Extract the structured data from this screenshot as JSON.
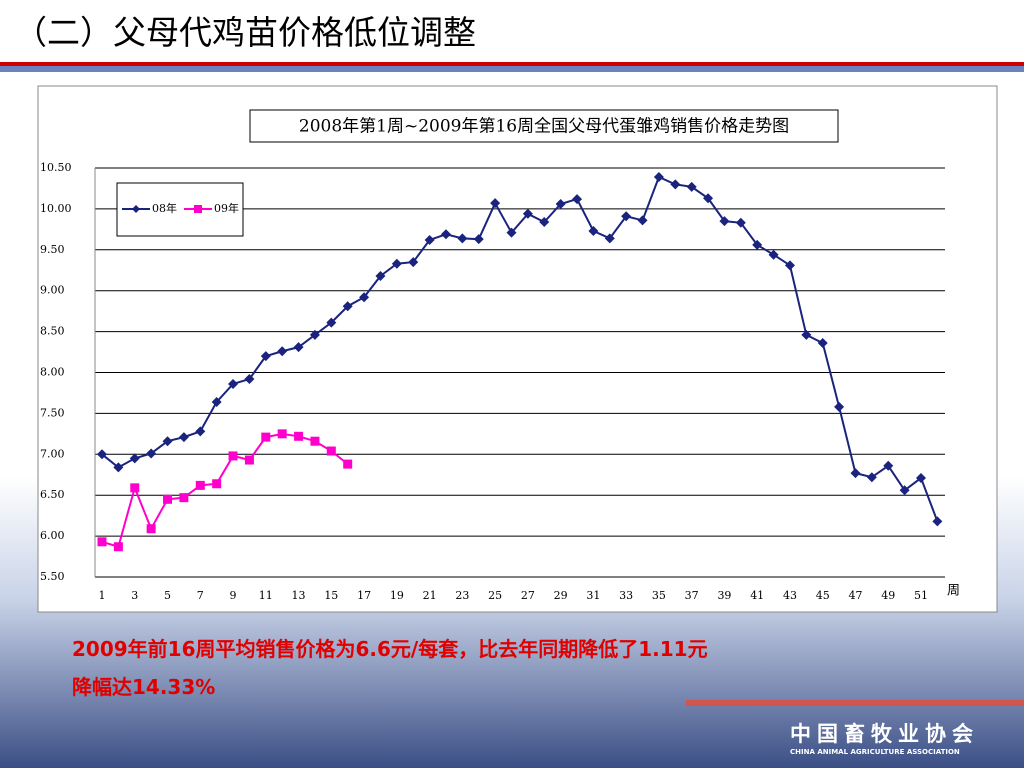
{
  "slide": {
    "title": "（二）父母代鸡苗价格低位调整",
    "note_lines": [
      "2009年前16周平均销售价格为6.6元/每套，比去年同期降低了1.11元",
      "降幅达14.33%"
    ],
    "logo_name": "中国畜牧业协会",
    "logo_subtitle": "CHINA ANIMAL AGRICULTURE ASSOCIATION"
  },
  "chart_data": {
    "type": "line",
    "title": "2008年第1周~2009年第16周全国父母代蛋雏鸡销售价格走势图",
    "x_label": "周",
    "categories": [
      1,
      null,
      3,
      null,
      5,
      null,
      7,
      null,
      9,
      null,
      11,
      null,
      13,
      null,
      15,
      null,
      17,
      null,
      19,
      null,
      21,
      null,
      23,
      null,
      25,
      null,
      27,
      null,
      29,
      null,
      31,
      null,
      33,
      null,
      35,
      null,
      37,
      null,
      39,
      null,
      41,
      null,
      43,
      null,
      45,
      null,
      47,
      null,
      49,
      null,
      51,
      null
    ],
    "series": [
      {
        "name": "08年",
        "color": "#1a237e",
        "marker": "diamond",
        "values": [
          7.0,
          6.84,
          6.95,
          7.01,
          7.16,
          7.21,
          7.28,
          7.64,
          7.86,
          7.92,
          8.2,
          8.26,
          8.31,
          8.46,
          8.61,
          8.81,
          8.92,
          9.18,
          9.33,
          9.35,
          9.62,
          9.69,
          9.64,
          9.63,
          10.07,
          9.71,
          9.94,
          9.84,
          10.06,
          10.12,
          9.73,
          9.64,
          9.91,
          9.86,
          10.39,
          10.3,
          10.27,
          10.13,
          9.85,
          9.83,
          9.56,
          9.44,
          9.31,
          8.46,
          8.36,
          7.58,
          6.77,
          6.72,
          6.86,
          6.56,
          6.71,
          6.18
        ]
      },
      {
        "name": "09年",
        "color": "#ff00cc",
        "marker": "square",
        "values": [
          5.93,
          5.87,
          6.59,
          6.09,
          6.45,
          6.47,
          6.62,
          6.64,
          6.98,
          6.93,
          7.21,
          7.25,
          7.22,
          7.16,
          7.04,
          6.88,
          null,
          null,
          null,
          null,
          null,
          null,
          null,
          null,
          null,
          null,
          null,
          null,
          null,
          null,
          null,
          null,
          null,
          null,
          null,
          null,
          null,
          null,
          null,
          null,
          null,
          null,
          null,
          null,
          null,
          null,
          null,
          null,
          null,
          null,
          null,
          null
        ]
      }
    ],
    "ylim": [
      5.5,
      10.5
    ],
    "yticks": [
      {
        "value": 5.5,
        "label": "5.50"
      },
      {
        "value": 6,
        "label": "6.00"
      },
      {
        "value": 6.5,
        "label": "6.50"
      },
      {
        "value": 7,
        "label": "7.00"
      },
      {
        "value": 7.5,
        "label": "7.50"
      },
      {
        "value": 8,
        "label": "8.00"
      },
      {
        "value": 8.5,
        "label": "8.50"
      },
      {
        "value": 9,
        "label": "9.00"
      },
      {
        "value": 9.5,
        "label": "9.50"
      },
      {
        "value": 10,
        "label": "10.00"
      },
      {
        "value": 10.5,
        "label": "10.50"
      }
    ],
    "grid": true,
    "legend": "top-left"
  }
}
